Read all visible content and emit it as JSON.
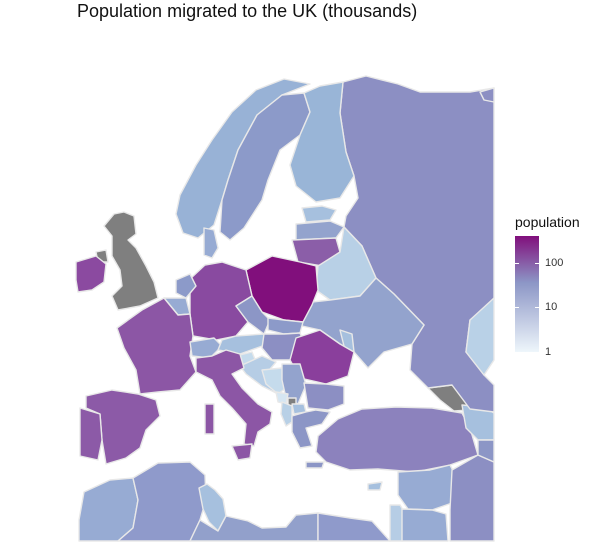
{
  "title": "Population migrated to the UK (thousands)",
  "legend": {
    "title": "population",
    "scale": "log10",
    "color_low": "#eef6fb",
    "color_mid": "#8c96c6",
    "color_high": "#810f7c",
    "ticks": [
      {
        "label": "1",
        "value": 1
      },
      {
        "label": "10",
        "value": 10
      },
      {
        "label": "100",
        "value": 100
      }
    ]
  },
  "map": {
    "highlight_region": "United Kingdom",
    "highlight_color": "#7f7f7f",
    "border_color": "#e6e6e6",
    "regions": [
      {
        "name": "Poland",
        "color": "#810f7c"
      },
      {
        "name": "Romania",
        "color": "#8a3f9c"
      },
      {
        "name": "Ireland",
        "color": "#8b4aa0"
      },
      {
        "name": "Germany",
        "color": "#894aa0"
      },
      {
        "name": "France",
        "color": "#8c56a5"
      },
      {
        "name": "Italy",
        "color": "#8c56a5"
      },
      {
        "name": "Spain",
        "color": "#8c5aa7"
      },
      {
        "name": "Portugal",
        "color": "#8c5aa7"
      },
      {
        "name": "Lithuania",
        "color": "#8b5ea8"
      },
      {
        "name": "Russia",
        "color": "#8c8fc3"
      },
      {
        "name": "Sweden",
        "color": "#8c9ac9"
      },
      {
        "name": "Finland",
        "color": "#99b5d7"
      },
      {
        "name": "Norway",
        "color": "#98b2d6"
      },
      {
        "name": "Turkey",
        "color": "#8c82bd"
      },
      {
        "name": "Belarus",
        "color": "#b8d0e6"
      },
      {
        "name": "Ukraine",
        "color": "#93a3cd"
      },
      {
        "name": "Georgia",
        "color": "#7f7f7f"
      },
      {
        "name": "Libya",
        "color": "#92a0cb"
      }
    ]
  }
}
